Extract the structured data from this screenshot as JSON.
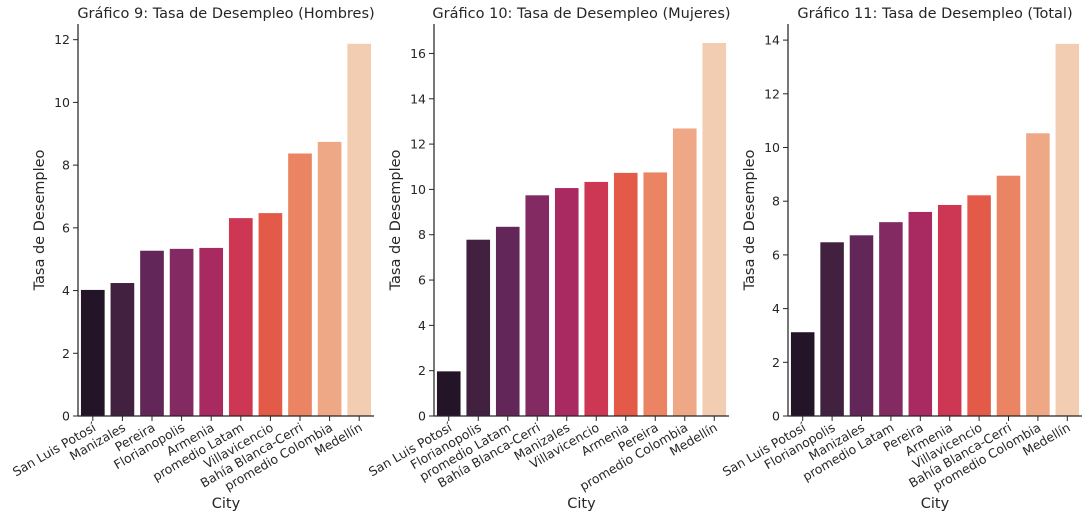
{
  "chart_data": [
    {
      "type": "bar",
      "title": "Gráfico 9: Tasa de Desempleo (Hombres)",
      "xlabel": "City",
      "ylabel": "Tasa de Desempleo",
      "categories": [
        "San Luis Potosí",
        "Manizales",
        "Pereira",
        "Florianopolis",
        "Armenia",
        "promedio Latam",
        "Villavicencio",
        "Bahía Blanca-Cerri",
        "promedio Colombia",
        "Medellín"
      ],
      "values": [
        4.02,
        4.24,
        5.27,
        5.33,
        5.36,
        6.31,
        6.47,
        8.37,
        8.74,
        11.87
      ],
      "ylim": [
        0,
        12.5
      ],
      "yticks": [
        0,
        2,
        4,
        6,
        8,
        10,
        12
      ],
      "grid": false,
      "palette": "rocket"
    },
    {
      "type": "bar",
      "title": "Gráfico 10: Tasa de Desempleo (Mujeres)",
      "xlabel": "City",
      "ylabel": "Tasa de Desempleo",
      "categories": [
        "San Luis Potosí",
        "Florianopolis",
        "promedio Latam",
        "Bahía Blanca-Cerri",
        "Manizales",
        "Villavicencio",
        "Armenia",
        "Pereira",
        "promedio Colombia",
        "Medellín"
      ],
      "values": [
        1.97,
        7.78,
        8.35,
        9.74,
        10.06,
        10.33,
        10.73,
        10.75,
        12.69,
        16.46
      ],
      "ylim": [
        0,
        17.3
      ],
      "yticks": [
        0,
        2,
        4,
        6,
        8,
        10,
        12,
        14,
        16
      ],
      "grid": false,
      "palette": "rocket"
    },
    {
      "type": "bar",
      "title": "Gráfico 11: Tasa de Desempleo (Total)",
      "xlabel": "City",
      "ylabel": "Tasa de Desempleo",
      "categories": [
        "San Luis Potosí",
        "Florianopolis",
        "Manizales",
        "promedio Latam",
        "Pereira",
        "Armenia",
        "Villavicencio",
        "Bahía Blanca-Cerri",
        "promedio Colombia",
        "Medellín"
      ],
      "values": [
        3.12,
        6.47,
        6.73,
        7.22,
        7.6,
        7.86,
        8.22,
        8.95,
        10.53,
        13.86
      ],
      "ylim": [
        0,
        14.6
      ],
      "yticks": [
        0,
        2,
        4,
        6,
        8,
        10,
        12,
        14
      ],
      "grid": false,
      "palette": "rocket"
    }
  ],
  "colors": [
    "#231427",
    "#422040",
    "#622758",
    "#832a62",
    "#a92a60",
    "#ce3754",
    "#e35a48",
    "#ea8462",
    "#efa885",
    "#f2cdb1"
  ]
}
